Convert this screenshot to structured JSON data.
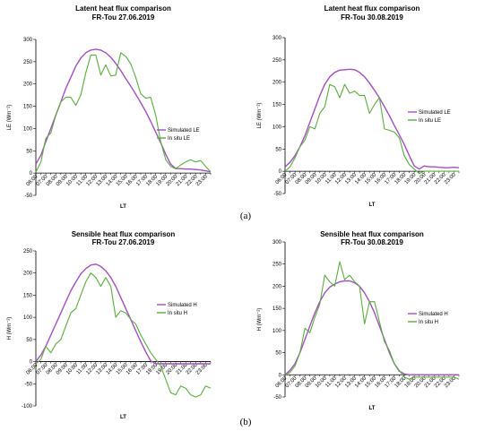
{
  "panel_labels": [
    "(a)",
    "(b)"
  ],
  "colors": {
    "simulated": "#a64ec6",
    "insitu": "#58b03a"
  },
  "chart_data": [
    {
      "type": "line",
      "title": "Latent heat flux comparison",
      "subtitle": "FR-Tou 27.06.2019",
      "xlabel": "LT",
      "ylabel": "LE (Wm⁻²)",
      "ylim": [
        -50,
        300
      ],
      "yticks": [
        -50,
        0,
        50,
        100,
        150,
        200,
        250,
        300
      ],
      "x": [
        "06:00",
        "06:30",
        "07:00",
        "07:30",
        "08:00",
        "08:30",
        "09:00",
        "09:30",
        "10:00",
        "10:30",
        "11:00",
        "11:30",
        "12:00",
        "12:30",
        "13:00",
        "13:30",
        "14:00",
        "14:30",
        "15:00",
        "15:30",
        "16:00",
        "16:30",
        "17:00",
        "17:30",
        "18:00",
        "18:30",
        "19:00",
        "19:30",
        "20:00",
        "20:30",
        "21:00",
        "21:30",
        "22:00",
        "22:30",
        "23:00",
        "23:30"
      ],
      "xticks": [
        "06:00",
        "07:00",
        "08:00",
        "09:00",
        "10:00",
        "11:00",
        "12:00",
        "13:00",
        "14:00",
        "15:00",
        "16:00",
        "17:00",
        "18:00",
        "19:00",
        "20:00",
        "21:00",
        "22:00",
        "23:00"
      ],
      "legend": "right",
      "series": [
        {
          "name": "Simulated LE",
          "key": "simulated",
          "values": [
            20,
            40,
            70,
            100,
            130,
            160,
            190,
            215,
            240,
            258,
            270,
            276,
            278,
            276,
            270,
            260,
            246,
            230,
            212,
            195,
            177,
            158,
            138,
            116,
            92,
            68,
            42,
            20,
            10,
            10,
            9,
            9,
            8,
            7,
            5,
            3
          ]
        },
        {
          "name": "In situ LE",
          "key": "insitu",
          "values": [
            2,
            25,
            78,
            90,
            130,
            160,
            170,
            170,
            152,
            175,
            225,
            265,
            265,
            220,
            243,
            218,
            220,
            270,
            262,
            245,
            215,
            178,
            168,
            170,
            130,
            70,
            30,
            15,
            10,
            18,
            25,
            30,
            25,
            28,
            15,
            3
          ]
        }
      ]
    },
    {
      "type": "line",
      "title": "Latent heat flux comparison",
      "subtitle": "FR-Tou 30.08.2019",
      "xlabel": "LT",
      "ylabel": "LE (Wm⁻²)",
      "ylim": [
        -50,
        300
      ],
      "yticks": [
        -50,
        0,
        50,
        100,
        150,
        200,
        250,
        300
      ],
      "x": [
        "06:00",
        "06:30",
        "07:00",
        "07:30",
        "08:00",
        "08:30",
        "09:00",
        "09:30",
        "10:00",
        "10:30",
        "11:00",
        "11:30",
        "12:00",
        "12:30",
        "13:00",
        "13:30",
        "14:00",
        "14:30",
        "15:00",
        "15:30",
        "16:00",
        "16:30",
        "17:00",
        "17:30",
        "18:00",
        "18:30",
        "19:00",
        "19:30",
        "20:00",
        "20:30",
        "21:00",
        "21:30",
        "22:00",
        "22:30",
        "23:00",
        "23:30"
      ],
      "xticks": [
        "06:00",
        "07:00",
        "08:00",
        "09:00",
        "10:00",
        "11:00",
        "12:00",
        "13:00",
        "14:00",
        "15:00",
        "16:00",
        "17:00",
        "18:00",
        "19:00",
        "20:00",
        "21:00",
        "22:00",
        "23:00"
      ],
      "legend": "right",
      "series": [
        {
          "name": "Simulated LE",
          "key": "simulated",
          "values": [
            10,
            20,
            35,
            55,
            80,
            110,
            140,
            170,
            195,
            212,
            222,
            227,
            228,
            229,
            228,
            222,
            212,
            198,
            182,
            165,
            145,
            125,
            103,
            82,
            60,
            35,
            12,
            5,
            12,
            10,
            10,
            9,
            8,
            8,
            9,
            8
          ]
        },
        {
          "name": "In situ LE",
          "key": "insitu",
          "values": [
            0,
            10,
            30,
            55,
            70,
            100,
            95,
            130,
            145,
            195,
            190,
            165,
            195,
            175,
            180,
            170,
            170,
            130,
            150,
            165,
            95,
            92,
            88,
            75,
            35,
            15,
            5,
            -5,
            0,
            0,
            0,
            0,
            0,
            0,
            0,
            0
          ]
        }
      ]
    },
    {
      "type": "line",
      "title": "Sensible heat flux comparison",
      "subtitle": "FR-Tou 27.06.2019",
      "xlabel": "LT",
      "ylabel": "H (Wm⁻²)",
      "ylim": [
        -100,
        250
      ],
      "yticks": [
        -100,
        -50,
        0,
        50,
        100,
        150,
        200,
        250
      ],
      "x": [
        "06:00",
        "06:30",
        "07:00",
        "07:30",
        "08:00",
        "08:30",
        "09:00",
        "09:30",
        "10:00",
        "10:30",
        "11:00",
        "11:30",
        "12:00",
        "12:30",
        "13:00",
        "13:30",
        "14:00",
        "14:30",
        "15:00",
        "15:30",
        "16:00",
        "16:30",
        "17:00",
        "17:30",
        "18:00",
        "18:30",
        "19:00",
        "19:30",
        "20:00",
        "20:30",
        "21:00",
        "21:30",
        "22:00",
        "22:30",
        "23:00",
        "23:30"
      ],
      "xticks": [
        "06:00",
        "07:00",
        "08:00",
        "09:00",
        "10:00",
        "11:00",
        "12:00",
        "13:00",
        "14:00",
        "15:00",
        "16:00",
        "17:00",
        "18:00",
        "19:00",
        "20:00",
        "21:00",
        "22:00",
        "23:00"
      ],
      "legend": "right",
      "series": [
        {
          "name": "Simulated H",
          "key": "simulated",
          "values": [
            0,
            15,
            35,
            60,
            85,
            110,
            135,
            160,
            180,
            198,
            210,
            218,
            220,
            215,
            205,
            190,
            170,
            145,
            120,
            95,
            70,
            45,
            22,
            2,
            -5,
            -5,
            -5,
            -5,
            -5,
            -5,
            -5,
            -5,
            -5,
            -5,
            -5,
            -5
          ]
        },
        {
          "name": "In situ H",
          "key": "insitu",
          "values": [
            -5,
            5,
            35,
            20,
            40,
            50,
            80,
            110,
            120,
            150,
            180,
            200,
            190,
            170,
            190,
            170,
            100,
            115,
            110,
            95,
            85,
            60,
            40,
            20,
            5,
            -10,
            -40,
            -70,
            -75,
            -55,
            -60,
            -75,
            -80,
            -75,
            -55,
            -60
          ]
        }
      ]
    },
    {
      "type": "line",
      "title": "Sensible heat flux comparison",
      "subtitle": "FR-Tou 30.08.2019",
      "xlabel": "LT",
      "ylabel": "H (Wm⁻²)",
      "ylim": [
        -50,
        300
      ],
      "yticks": [
        -50,
        0,
        50,
        100,
        150,
        200,
        250,
        300
      ],
      "x": [
        "06:00",
        "06:30",
        "07:00",
        "07:30",
        "08:00",
        "08:30",
        "09:00",
        "09:30",
        "10:00",
        "10:30",
        "11:00",
        "11:30",
        "12:00",
        "12:30",
        "13:00",
        "13:30",
        "14:00",
        "14:30",
        "15:00",
        "15:30",
        "16:00",
        "16:30",
        "17:00",
        "17:30",
        "18:00",
        "18:30",
        "19:00",
        "19:30",
        "20:00",
        "20:30",
        "21:00",
        "21:30",
        "22:00",
        "22:30",
        "23:00",
        "23:30"
      ],
      "xticks": [
        "06:00",
        "07:00",
        "08:00",
        "09:00",
        "10:00",
        "11:00",
        "12:00",
        "13:00",
        "14:00",
        "15:00",
        "16:00",
        "17:00",
        "18:00",
        "19:00",
        "20:00",
        "21:00",
        "22:00",
        "23:00"
      ],
      "legend": "right",
      "series": [
        {
          "name": "Simulated H",
          "key": "simulated",
          "values": [
            0,
            10,
            25,
            50,
            80,
            110,
            140,
            165,
            185,
            198,
            205,
            210,
            212,
            212,
            208,
            200,
            185,
            165,
            140,
            110,
            80,
            50,
            25,
            8,
            2,
            0,
            0,
            0,
            0,
            0,
            0,
            0,
            0,
            0,
            0,
            0
          ]
        },
        {
          "name": "In situ H",
          "key": "insitu",
          "values": [
            0,
            5,
            20,
            50,
            105,
            95,
            130,
            160,
            225,
            210,
            200,
            255,
            215,
            225,
            210,
            200,
            115,
            165,
            165,
            120,
            75,
            55,
            25,
            10,
            -5,
            -10,
            -5,
            -5,
            -5,
            -5,
            -5,
            -5,
            -5,
            -5,
            -5,
            -10
          ]
        }
      ]
    }
  ]
}
